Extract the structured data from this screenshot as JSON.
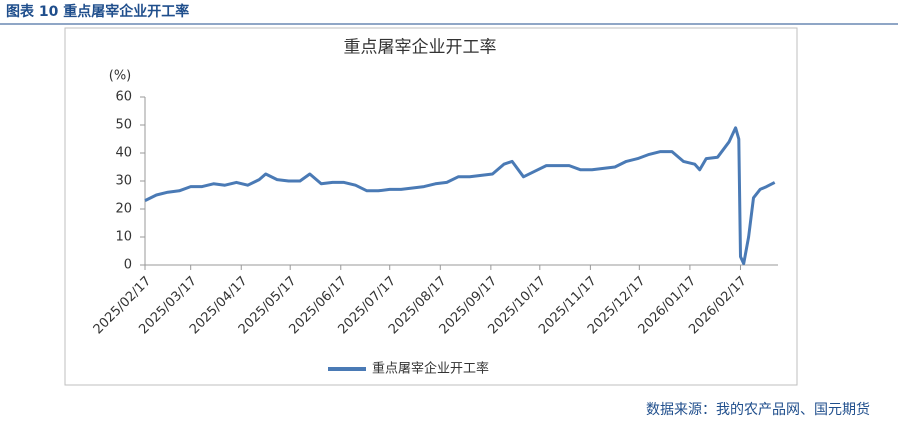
{
  "heading": "图表 10  重点屠宰企业开工率",
  "source": "数据来源：我的农产品网、国元期货",
  "chart_data": {
    "type": "line",
    "title": "重点屠宰企业开工率",
    "y_unit": "(%)",
    "x": [
      "2025/02/17",
      "2025/02/24",
      "2025/03/03",
      "2025/03/10",
      "2025/03/17",
      "2025/03/24",
      "2025/03/31",
      "2025/04/07",
      "2025/04/14",
      "2025/04/21",
      "2025/04/28",
      "2025/05/02",
      "2025/05/09",
      "2025/05/16",
      "2025/05/23",
      "2025/05/29",
      "2025/06/05",
      "2025/06/12",
      "2025/06/19",
      "2025/06/26",
      "2025/07/03",
      "2025/07/10",
      "2025/07/17",
      "2025/07/24",
      "2025/07/31",
      "2025/08/07",
      "2025/08/14",
      "2025/08/21",
      "2025/08/28",
      "2025/09/04",
      "2025/09/11",
      "2025/09/18",
      "2025/09/25",
      "2025/09/30",
      "2025/10/07",
      "2025/10/14",
      "2025/10/21",
      "2025/10/28",
      "2025/11/04",
      "2025/11/11",
      "2025/11/18",
      "2025/11/25",
      "2025/12/02",
      "2025/12/09",
      "2025/12/16",
      "2025/12/23",
      "2025/12/30",
      "2026/01/06",
      "2026/01/13",
      "2026/01/20",
      "2026/01/23",
      "2026/01/27",
      "2026/02/03",
      "2026/02/10",
      "2026/02/14",
      "2026/02/16",
      "2026/02/17",
      "2026/02/19",
      "2026/02/22",
      "2026/02/25",
      "2026/03/01",
      "2026/03/05",
      "2026/03/10"
    ],
    "series": [
      {
        "name": "重点屠宰企业开工率",
        "color": "#4a7ab5",
        "values": [
          23,
          25,
          26,
          26.5,
          28,
          28,
          29,
          28.5,
          29.5,
          28.5,
          30.5,
          32.5,
          30.5,
          30,
          30,
          32.5,
          29,
          29.5,
          29.5,
          28.5,
          26.5,
          26.5,
          27,
          27,
          27.5,
          28,
          29,
          29.5,
          31.5,
          31.5,
          32,
          32.5,
          36,
          37,
          31.5,
          33.5,
          35.5,
          35.5,
          35.5,
          34,
          34,
          34.5,
          35,
          37,
          38,
          39.5,
          40.5,
          40.5,
          37,
          36,
          34,
          38,
          38.5,
          44,
          49,
          45,
          3,
          0.5,
          10,
          24,
          27,
          28,
          29.5
        ]
      }
    ],
    "xlim": [
      "2025/02/17",
      "2026/03/12"
    ],
    "xticks": [
      "2025/02/17",
      "2025/03/17",
      "2025/04/17",
      "2025/05/17",
      "2025/06/17",
      "2025/07/17",
      "2025/08/17",
      "2025/09/17",
      "2025/10/17",
      "2025/11/17",
      "2025/12/17",
      "2026/01/17",
      "2026/02/17"
    ],
    "ylim": [
      0,
      60
    ],
    "yticks": [
      0,
      10,
      20,
      30,
      40,
      50,
      60
    ],
    "legend": "bottom"
  }
}
